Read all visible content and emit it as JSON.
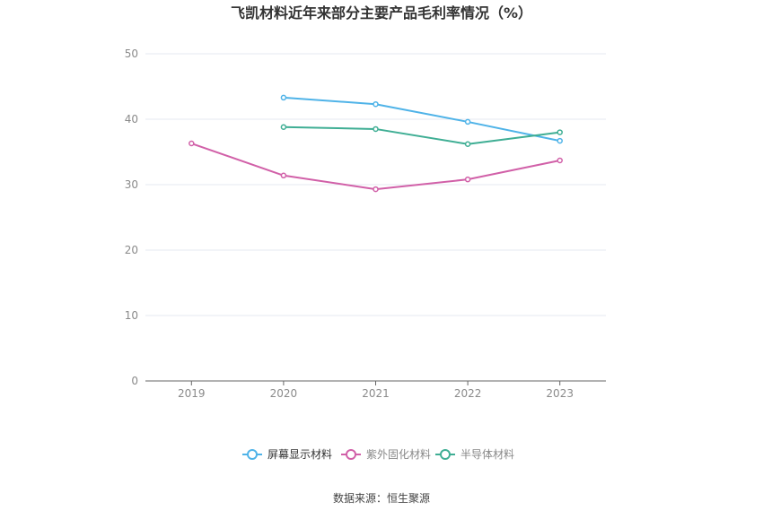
{
  "chart_data": {
    "type": "line",
    "title": "飞凯材料近年来部分主要产品毛利率情况（%）",
    "categories": [
      "2019",
      "2020",
      "2021",
      "2022",
      "2023"
    ],
    "ylim": [
      0,
      50
    ],
    "yticks": [
      0,
      10,
      20,
      30,
      40,
      50
    ],
    "grid": true,
    "legend_position": "bottom",
    "series": [
      {
        "name": "屏幕显示材料",
        "color": "#4fb3e8",
        "values": [
          null,
          43.3,
          42.3,
          39.6,
          36.7
        ]
      },
      {
        "name": "紫外固化材料",
        "color": "#d160a8",
        "values": [
          36.3,
          31.4,
          29.3,
          30.8,
          33.7
        ]
      },
      {
        "name": "半导体材料",
        "color": "#3fae94",
        "values": [
          null,
          38.8,
          38.5,
          36.2,
          38.0
        ]
      }
    ]
  },
  "source": "数据来源：恒生聚源"
}
